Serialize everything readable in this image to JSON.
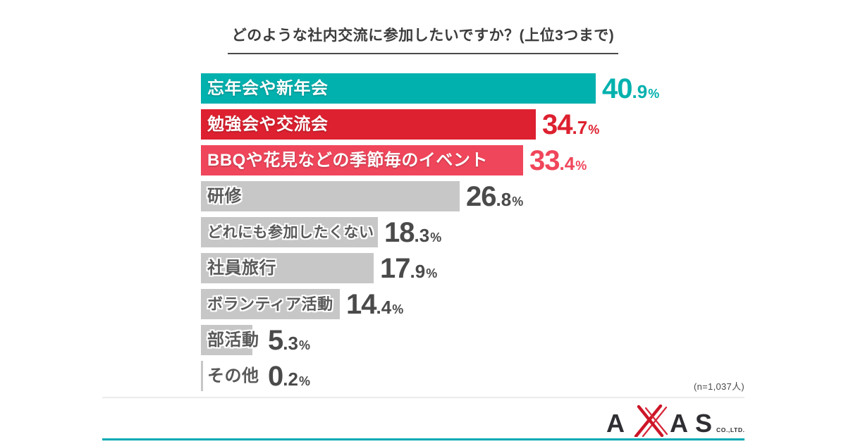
{
  "chart_data": {
    "type": "bar",
    "orientation": "horizontal",
    "title": "どのような社内交流に参加したいですか？(上位3つまで)",
    "sample_note": "(n=1,037人)",
    "unit": "%",
    "xlim": [
      0,
      45
    ],
    "grid": false,
    "legend": "none",
    "categories": [
      "忘年会や新年会",
      "勉強会や交流会",
      "BBQや花見などの季節毎のイベント",
      "研修",
      "どれにも参加したくない",
      "社員旅行",
      "ボランティア活動",
      "部活動",
      "その他"
    ],
    "values": [
      40.9,
      34.7,
      33.4,
      26.8,
      18.3,
      17.9,
      14.4,
      5.3,
      0.2
    ],
    "rows": [
      {
        "label": "忘年会や新年会",
        "value": 40.9,
        "int": "40",
        "dec": ".9",
        "pct": "%",
        "bar_color": "#00b1ae",
        "value_color": "#00b1ae",
        "label_light": true
      },
      {
        "label": "勉強会や交流会",
        "value": 34.7,
        "int": "34",
        "dec": ".7",
        "pct": "%",
        "bar_color": "#dd2130",
        "value_color": "#dd2130",
        "label_light": true
      },
      {
        "label": "BBQや花見などの季節毎のイベント",
        "value": 33.4,
        "int": "33",
        "dec": ".4",
        "pct": "%",
        "bar_color": "#f0465b",
        "value_color": "#f0465b",
        "label_light": true
      },
      {
        "label": "研修",
        "value": 26.8,
        "int": "26",
        "dec": ".8",
        "pct": "%",
        "bar_color": "#c7c7c7",
        "value_color": "#4a4a4a",
        "label_light": false
      },
      {
        "label": "どれにも参加したくない",
        "value": 18.3,
        "int": "18",
        "dec": ".3",
        "pct": "%",
        "bar_color": "#c7c7c7",
        "value_color": "#4a4a4a",
        "label_light": false
      },
      {
        "label": "社員旅行",
        "value": 17.9,
        "int": "17",
        "dec": ".9",
        "pct": "%",
        "bar_color": "#c7c7c7",
        "value_color": "#4a4a4a",
        "label_light": false
      },
      {
        "label": "ボランティア活動",
        "value": 14.4,
        "int": "14",
        "dec": ".4",
        "pct": "%",
        "bar_color": "#c7c7c7",
        "value_color": "#4a4a4a",
        "label_light": false
      },
      {
        "label": "部活動",
        "value": 5.3,
        "int": "5",
        "dec": ".3",
        "pct": "%",
        "bar_color": "#c7c7c7",
        "value_color": "#4a4a4a",
        "label_light": false
      },
      {
        "label": "その他",
        "value": 0.2,
        "int": "0",
        "dec": ".2",
        "pct": "%",
        "bar_color": "#c7c7c7",
        "value_color": "#4a4a4a",
        "label_light": false
      }
    ]
  },
  "brand": {
    "letter_a1": "A",
    "letter_a2": "A",
    "letter_s": "S",
    "suffix": "CO.,LTD.",
    "dark": "#2f2f33",
    "red": "#cd1628",
    "red_light": "#d8273a"
  },
  "footer": {
    "accent_color": "#00a8b4"
  }
}
